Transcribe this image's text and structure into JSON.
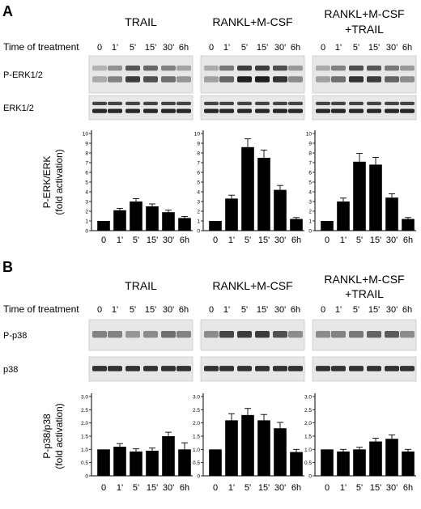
{
  "panels": [
    {
      "letter": "A",
      "row_label": "Time of treatment",
      "conditions": [
        {
          "title_lines": [
            "TRAIL"
          ]
        },
        {
          "title_lines": [
            "RANKL+M-CSF"
          ]
        },
        {
          "title_lines": [
            "RANKL+M-CSF",
            "+TRAIL"
          ]
        }
      ],
      "times": [
        "0",
        "1'",
        "5'",
        "15'",
        "30'",
        "6h"
      ],
      "blots": [
        {
          "label": "P-ERK1/2",
          "bands": 2,
          "intensity": [
            [
              0.25,
              0.45,
              0.8,
              0.7,
              0.55,
              0.35
            ],
            [
              0.3,
              0.6,
              0.95,
              0.95,
              0.85,
              0.4
            ],
            [
              0.3,
              0.55,
              0.85,
              0.8,
              0.6,
              0.4
            ]
          ]
        },
        {
          "label": "ERK1/2",
          "bands": 2,
          "intensity": [
            [
              0.9,
              0.9,
              0.9,
              0.9,
              0.9,
              0.9
            ],
            [
              0.9,
              0.9,
              0.9,
              0.9,
              0.9,
              0.9
            ],
            [
              0.9,
              0.9,
              0.9,
              0.9,
              0.9,
              0.9
            ]
          ]
        }
      ],
      "chart_data": {
        "type": "bar",
        "ylabel_lines": [
          "P-ERK/ERK",
          "(fold activation)"
        ],
        "ylim": [
          0,
          10
        ],
        "yticks": [
          "0",
          "1",
          "2",
          "3",
          "4",
          "5",
          "6",
          "7",
          "8",
          "9",
          "10"
        ],
        "categories": [
          "0",
          "1'",
          "5'",
          "15'",
          "30'",
          "6h"
        ],
        "groups": [
          {
            "values": [
              1.0,
              2.1,
              3.0,
              2.5,
              1.9,
              1.3
            ],
            "errors": [
              0.0,
              0.2,
              0.3,
              0.25,
              0.2,
              0.15
            ]
          },
          {
            "values": [
              1.0,
              3.3,
              8.6,
              7.5,
              4.2,
              1.2
            ],
            "errors": [
              0.0,
              0.35,
              0.85,
              0.8,
              0.45,
              0.15
            ]
          },
          {
            "values": [
              1.0,
              3.0,
              7.1,
              6.8,
              3.4,
              1.2
            ],
            "errors": [
              0.0,
              0.35,
              0.85,
              0.75,
              0.4,
              0.15
            ]
          }
        ]
      }
    },
    {
      "letter": "B",
      "row_label": "Time of treatment",
      "conditions": [
        {
          "title_lines": [
            "TRAIL"
          ]
        },
        {
          "title_lines": [
            "RANKL+M-CSF"
          ]
        },
        {
          "title_lines": [
            "RANKL+M-CSF",
            "+TRAIL"
          ]
        }
      ],
      "times": [
        "0",
        "1'",
        "5'",
        "15'",
        "30'",
        "6h"
      ],
      "blots": [
        {
          "label": "P-p38",
          "bands": 1,
          "intensity": [
            [
              0.45,
              0.45,
              0.35,
              0.4,
              0.55,
              0.45
            ],
            [
              0.4,
              0.75,
              0.8,
              0.8,
              0.7,
              0.4
            ],
            [
              0.4,
              0.45,
              0.5,
              0.6,
              0.65,
              0.4
            ]
          ]
        },
        {
          "label": "p38",
          "bands": 1,
          "intensity": [
            [
              0.85,
              0.85,
              0.85,
              0.85,
              0.85,
              0.85
            ],
            [
              0.85,
              0.85,
              0.85,
              0.85,
              0.85,
              0.85
            ],
            [
              0.85,
              0.85,
              0.85,
              0.85,
              0.85,
              0.85
            ]
          ]
        }
      ],
      "chart_data": {
        "type": "bar",
        "ylabel_lines": [
          "P-p38/p38",
          "(fold activation)"
        ],
        "ylim": [
          0,
          3.0
        ],
        "yticks": [
          "0",
          "0.5",
          "1.0",
          "1.5",
          "2.0",
          "2.5",
          "3.0"
        ],
        "categories": [
          "0",
          "1'",
          "5'",
          "15'",
          "30'",
          "6h"
        ],
        "groups": [
          {
            "values": [
              1.0,
              1.1,
              0.92,
              0.95,
              1.5,
              1.0
            ],
            "errors": [
              0.0,
              0.12,
              0.1,
              0.1,
              0.15,
              0.25
            ]
          },
          {
            "values": [
              1.0,
              2.1,
              2.3,
              2.1,
              1.8,
              0.9
            ],
            "errors": [
              0.0,
              0.25,
              0.25,
              0.22,
              0.22,
              0.1
            ]
          },
          {
            "values": [
              1.0,
              0.92,
              1.0,
              1.3,
              1.4,
              0.92
            ],
            "errors": [
              0.0,
              0.08,
              0.08,
              0.12,
              0.15,
              0.08
            ]
          }
        ]
      }
    }
  ]
}
